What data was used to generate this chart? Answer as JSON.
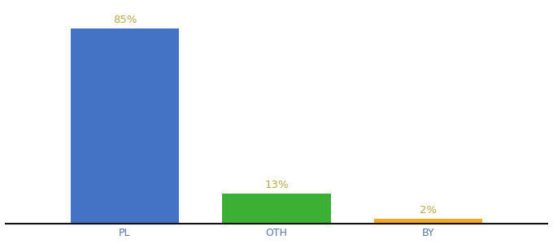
{
  "categories": [
    "PL",
    "OTH",
    "BY"
  ],
  "values": [
    85,
    13,
    2
  ],
  "bar_colors": [
    "#4472c4",
    "#3cb034",
    "#f5a623"
  ],
  "title": "",
  "ylim": [
    0,
    95
  ],
  "background_color": "#ffffff",
  "value_labels": [
    "85%",
    "13%",
    "2%"
  ],
  "tick_fontsize": 9,
  "label_fontsize": 9.5,
  "bar_positions": [
    0.22,
    0.5,
    0.78
  ],
  "bar_width": 0.2,
  "label_color": "#b8a848"
}
